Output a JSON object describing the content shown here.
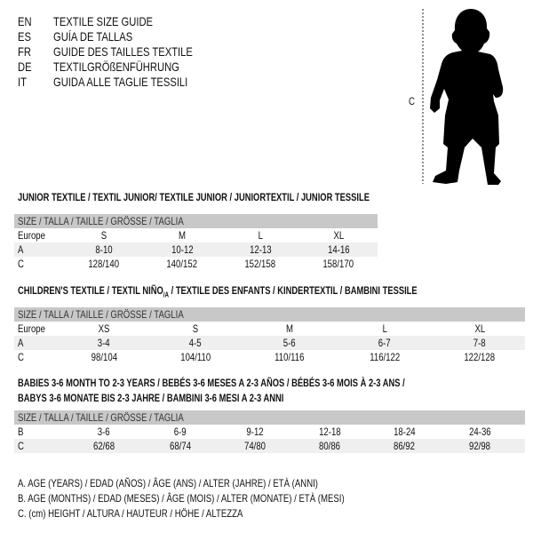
{
  "languages": [
    {
      "code": "EN",
      "text": "TEXTILE SIZE GUIDE"
    },
    {
      "code": "ES",
      "text": "GUÍA DE TALLAS"
    },
    {
      "code": "FR",
      "text": "GUIDE DES TAILLES TEXTILE"
    },
    {
      "code": "DE",
      "text": "TEXTILGRÖßENFÜHRUNG"
    },
    {
      "code": "IT",
      "text": "GUIDA ALLE TAGLIE TESSILI"
    }
  ],
  "figure": {
    "height_label": "C",
    "icon": "child-silhouette"
  },
  "size_header": "SIZE / TALLA / TAILLE / GRÖSSE / TAGLIA",
  "junior": {
    "title": "JUNIOR TEXTILE / TEXTIL JUNIOR/ TEXTILE JUNIOR / JUNIORTEXTIL / JUNIOR TESSILE",
    "rows": [
      {
        "label": "Europe",
        "values": [
          "S",
          "M",
          "L",
          "XL"
        ]
      },
      {
        "label": "A",
        "values": [
          "8-10",
          "10-12",
          "12-13",
          "14-16"
        ]
      },
      {
        "label": "C",
        "values": [
          "128/140",
          "140/152",
          "152/158",
          "158/170"
        ]
      }
    ]
  },
  "children": {
    "title_a": "CHILDREN'S TEXTILE / TEXTIL NIÑO",
    "title_sub": "/A",
    "title_b": " / TEXTILE DES ENFANTS / KINDERTEXTIL / BAMBINI TESSILE",
    "rows": [
      {
        "label": "Europe",
        "values": [
          "XS",
          "S",
          "M",
          "L",
          "XL"
        ]
      },
      {
        "label": "A",
        "values": [
          "3-4",
          "4-5",
          "5-6",
          "6-7",
          "7-8"
        ]
      },
      {
        "label": "C",
        "values": [
          "98/104",
          "104/110",
          "110/116",
          "116/122",
          "122/128"
        ]
      }
    ]
  },
  "babies": {
    "title_1": "BABIES 3-6 MONTH TO 2-3 YEARS / BEBÉS 3-6 MESES A 2-3 AÑOS / BÉBÉS 3-6 MOIS À 2-3 ANS /",
    "title_2": "BABYS 3-6 MONATE BIS 2-3 JAHRE / BAMBINI 3-6 MESI A 2-3 ANNI",
    "rows": [
      {
        "label": "B",
        "values": [
          "3-6",
          "6-9",
          "9-12",
          "12-18",
          "18-24",
          "24-36"
        ]
      },
      {
        "label": "C",
        "values": [
          "62/68",
          "68/74",
          "74/80",
          "80/86",
          "86/92",
          "92/98"
        ]
      }
    ]
  },
  "notes": [
    "A. AGE (YEARS) / EDAD (AÑOS) / ÂGE (ANS) / ALTER (JAHRE) / ETÀ (ANNI)",
    "B. AGE (MONTHS) / EDAD (MESES) / ÂGE (MOIS) / ALTER (MONATE) / ETÀ (MESI)",
    "C. (cm) HEIGHT / ALTURA / HAUTEUR / HÖHE / ALTEZZA"
  ]
}
